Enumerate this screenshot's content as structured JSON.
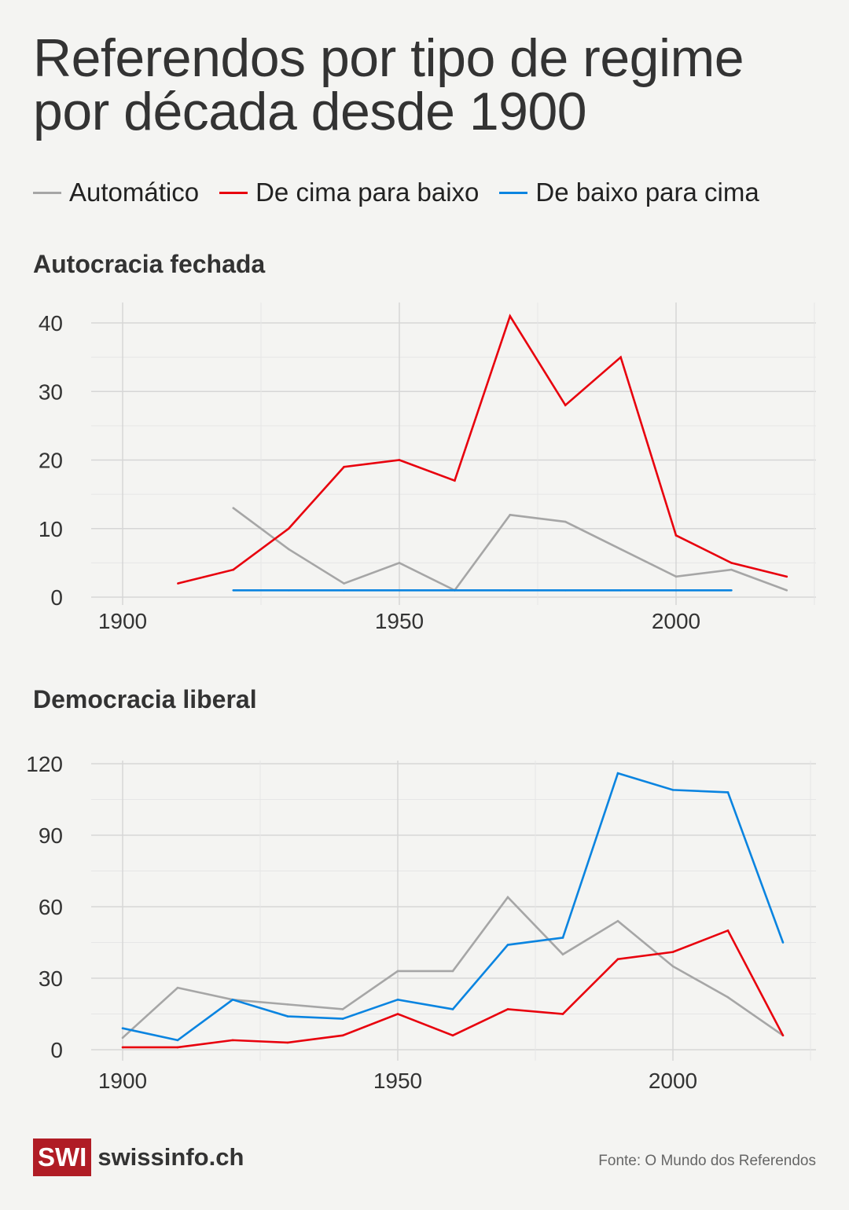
{
  "title": "Referendos por tipo de regime por década desde 1900",
  "legend": [
    {
      "name": "Automático",
      "color": "#a6a6a6"
    },
    {
      "name": "De cima para baixo",
      "color": "#e8000d"
    },
    {
      "name": "De baixo para cima",
      "color": "#0a84e0"
    }
  ],
  "chart_data": [
    {
      "type": "line",
      "title": "Autocracia fechada",
      "xlim": [
        1900,
        2025
      ],
      "ylim": [
        0,
        40
      ],
      "xticks": [
        "1900",
        "1950",
        "2000"
      ],
      "yticks": [
        "0",
        "10",
        "20",
        "30",
        "40"
      ],
      "grid": true,
      "series": [
        {
          "name": "Automático",
          "color": "#a6a6a6",
          "x": [
            1920,
            1930,
            1940,
            1950,
            1960,
            1970,
            1980,
            1990,
            2000,
            2010,
            2020
          ],
          "values": [
            13,
            7,
            2,
            5,
            1,
            12,
            11,
            7,
            3,
            4,
            1
          ]
        },
        {
          "name": "De cima para baixo",
          "color": "#e8000d",
          "x": [
            1910,
            1920,
            1930,
            1940,
            1950,
            1960,
            1970,
            1980,
            1990,
            2000,
            2010,
            2020
          ],
          "values": [
            2,
            4,
            10,
            19,
            20,
            17,
            41,
            28,
            35,
            9,
            5,
            3
          ]
        },
        {
          "name": "De baixo para cima",
          "color": "#0a84e0",
          "x": [
            1920,
            1930,
            1940,
            1950,
            1960,
            1970,
            1980,
            1990,
            2000,
            2010
          ],
          "values": [
            1,
            1,
            1,
            1,
            1,
            1,
            1,
            1,
            1,
            1
          ]
        }
      ]
    },
    {
      "type": "line",
      "title": "Democracia liberal",
      "xlim": [
        1900,
        2025
      ],
      "ylim": [
        0,
        120
      ],
      "xticks": [
        "1900",
        "1950",
        "2000"
      ],
      "yticks": [
        "0",
        "30",
        "60",
        "90",
        "120"
      ],
      "grid": true,
      "series": [
        {
          "name": "Automático",
          "color": "#a6a6a6",
          "x": [
            1900,
            1910,
            1920,
            1930,
            1940,
            1950,
            1960,
            1970,
            1980,
            1990,
            2000,
            2010,
            2020
          ],
          "values": [
            5,
            26,
            21,
            19,
            17,
            33,
            33,
            64,
            40,
            54,
            35,
            22,
            6
          ]
        },
        {
          "name": "De cima para baixo",
          "color": "#e8000d",
          "x": [
            1900,
            1910,
            1920,
            1930,
            1940,
            1950,
            1960,
            1970,
            1980,
            1990,
            2000,
            2010,
            2020
          ],
          "values": [
            1,
            1,
            4,
            3,
            6,
            15,
            6,
            17,
            15,
            38,
            41,
            50,
            6
          ]
        },
        {
          "name": "De baixo para cima",
          "color": "#0a84e0",
          "x": [
            1900,
            1910,
            1920,
            1930,
            1940,
            1950,
            1960,
            1970,
            1980,
            1990,
            2000,
            2010,
            2020
          ],
          "values": [
            9,
            4,
            21,
            14,
            13,
            21,
            17,
            44,
            47,
            116,
            109,
            108,
            45
          ]
        }
      ]
    }
  ],
  "footer": {
    "logo_box": "SWI",
    "logo_text": "swissinfo.ch",
    "source": "Fonte: O Mundo dos Referendos"
  }
}
